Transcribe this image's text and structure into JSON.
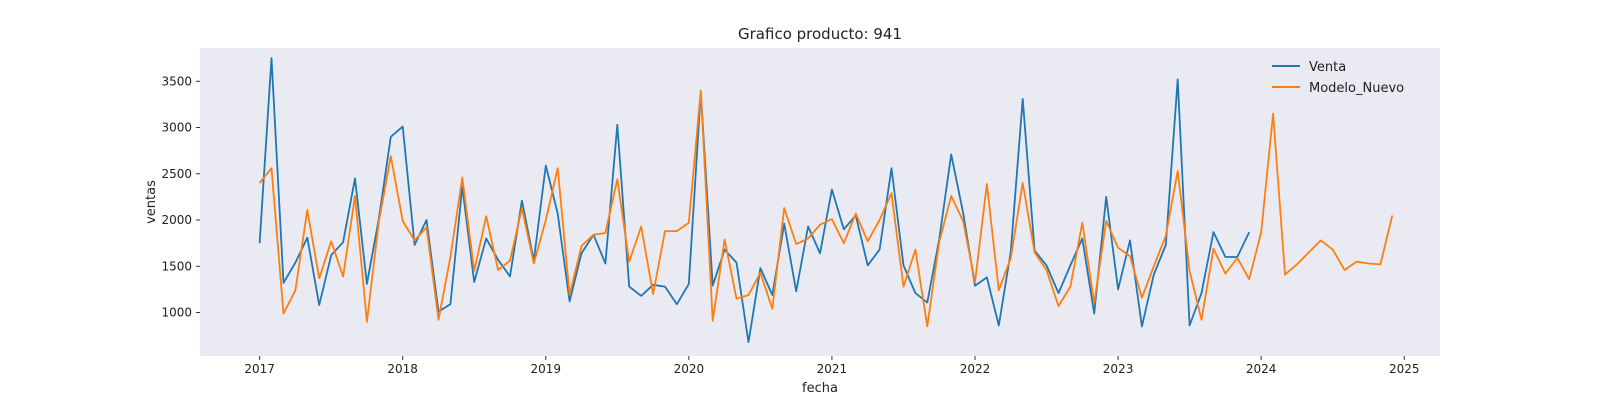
{
  "chart_data": {
    "type": "line",
    "title": "Grafico producto: 941",
    "xlabel": "fecha",
    "ylabel": "ventas",
    "x_ticks": [
      "2017",
      "2018",
      "2019",
      "2020",
      "2021",
      "2022",
      "2023",
      "2024",
      "2025"
    ],
    "y_ticks": [
      1000,
      1500,
      2000,
      2500,
      3000,
      3500
    ],
    "xlim": [
      "2016-08",
      "2025-04"
    ],
    "ylim": [
      530,
      3860
    ],
    "grid": false,
    "legend_position": "top-right",
    "series": [
      {
        "name": "Venta",
        "color": "#1f77b4",
        "points": [
          [
            "2017-01",
            1750
          ],
          [
            "2017-02",
            3750
          ],
          [
            "2017-03",
            1320
          ],
          [
            "2017-04",
            1540
          ],
          [
            "2017-05",
            1810
          ],
          [
            "2017-06",
            1080
          ],
          [
            "2017-07",
            1620
          ],
          [
            "2017-08",
            1760
          ],
          [
            "2017-09",
            2450
          ],
          [
            "2017-10",
            1310
          ],
          [
            "2017-11",
            2010
          ],
          [
            "2017-12",
            2900
          ],
          [
            "2018-01",
            3010
          ],
          [
            "2018-02",
            1730
          ],
          [
            "2018-03",
            2000
          ],
          [
            "2018-04",
            1010
          ],
          [
            "2018-05",
            1090
          ],
          [
            "2018-06",
            2360
          ],
          [
            "2018-07",
            1330
          ],
          [
            "2018-08",
            1800
          ],
          [
            "2018-09",
            1570
          ],
          [
            "2018-10",
            1390
          ],
          [
            "2018-11",
            2210
          ],
          [
            "2018-12",
            1560
          ],
          [
            "2019-01",
            2590
          ],
          [
            "2019-02",
            2070
          ],
          [
            "2019-03",
            1120
          ],
          [
            "2019-04",
            1640
          ],
          [
            "2019-05",
            1840
          ],
          [
            "2019-06",
            1530
          ],
          [
            "2019-07",
            3030
          ],
          [
            "2019-08",
            1280
          ],
          [
            "2019-09",
            1180
          ],
          [
            "2019-10",
            1300
          ],
          [
            "2019-11",
            1280
          ],
          [
            "2019-12",
            1090
          ],
          [
            "2020-01",
            1310
          ],
          [
            "2020-02",
            3380
          ],
          [
            "2020-03",
            1290
          ],
          [
            "2020-04",
            1680
          ],
          [
            "2020-05",
            1540
          ],
          [
            "2020-06",
            680
          ],
          [
            "2020-07",
            1480
          ],
          [
            "2020-08",
            1190
          ],
          [
            "2020-09",
            1960
          ],
          [
            "2020-10",
            1230
          ],
          [
            "2020-11",
            1930
          ],
          [
            "2020-12",
            1640
          ],
          [
            "2021-01",
            2330
          ],
          [
            "2021-02",
            1900
          ],
          [
            "2021-03",
            2050
          ],
          [
            "2021-04",
            1510
          ],
          [
            "2021-05",
            1680
          ],
          [
            "2021-06",
            2560
          ],
          [
            "2021-07",
            1510
          ],
          [
            "2021-08",
            1210
          ],
          [
            "2021-09",
            1110
          ],
          [
            "2021-10",
            1790
          ],
          [
            "2021-11",
            2710
          ],
          [
            "2021-12",
            2080
          ],
          [
            "2022-01",
            1290
          ],
          [
            "2022-02",
            1380
          ],
          [
            "2022-03",
            860
          ],
          [
            "2022-04",
            1660
          ],
          [
            "2022-05",
            3310
          ],
          [
            "2022-06",
            1670
          ],
          [
            "2022-07",
            1510
          ],
          [
            "2022-08",
            1210
          ],
          [
            "2022-09",
            1510
          ],
          [
            "2022-10",
            1800
          ],
          [
            "2022-11",
            990
          ],
          [
            "2022-12",
            2250
          ],
          [
            "2023-01",
            1250
          ],
          [
            "2023-02",
            1780
          ],
          [
            "2023-03",
            850
          ],
          [
            "2023-04",
            1410
          ],
          [
            "2023-05",
            1730
          ],
          [
            "2023-06",
            3520
          ],
          [
            "2023-07",
            860
          ],
          [
            "2023-08",
            1210
          ],
          [
            "2023-09",
            1870
          ],
          [
            "2023-10",
            1600
          ],
          [
            "2023-11",
            1600
          ],
          [
            "2023-12",
            1870
          ]
        ]
      },
      {
        "name": "Modelo_Nuevo",
        "color": "#ff7f0e",
        "points": [
          [
            "2017-01",
            2400
          ],
          [
            "2017-02",
            2560
          ],
          [
            "2017-03",
            990
          ],
          [
            "2017-04",
            1240
          ],
          [
            "2017-05",
            2110
          ],
          [
            "2017-06",
            1370
          ],
          [
            "2017-07",
            1770
          ],
          [
            "2017-08",
            1390
          ],
          [
            "2017-09",
            2260
          ],
          [
            "2017-10",
            900
          ],
          [
            "2017-11",
            1980
          ],
          [
            "2017-12",
            2690
          ],
          [
            "2018-01",
            1990
          ],
          [
            "2018-02",
            1780
          ],
          [
            "2018-03",
            1920
          ],
          [
            "2018-04",
            920
          ],
          [
            "2018-05",
            1600
          ],
          [
            "2018-06",
            2460
          ],
          [
            "2018-07",
            1450
          ],
          [
            "2018-08",
            2040
          ],
          [
            "2018-09",
            1460
          ],
          [
            "2018-10",
            1560
          ],
          [
            "2018-11",
            2130
          ],
          [
            "2018-12",
            1530
          ],
          [
            "2019-01",
            2000
          ],
          [
            "2019-02",
            2560
          ],
          [
            "2019-03",
            1190
          ],
          [
            "2019-04",
            1720
          ],
          [
            "2019-05",
            1840
          ],
          [
            "2019-06",
            1860
          ],
          [
            "2019-07",
            2440
          ],
          [
            "2019-08",
            1550
          ],
          [
            "2019-09",
            1930
          ],
          [
            "2019-10",
            1200
          ],
          [
            "2019-11",
            1880
          ],
          [
            "2019-12",
            1880
          ],
          [
            "2020-01",
            1970
          ],
          [
            "2020-02",
            3400
          ],
          [
            "2020-03",
            910
          ],
          [
            "2020-04",
            1790
          ],
          [
            "2020-05",
            1150
          ],
          [
            "2020-06",
            1190
          ],
          [
            "2020-07",
            1430
          ],
          [
            "2020-08",
            1040
          ],
          [
            "2020-09",
            2130
          ],
          [
            "2020-10",
            1740
          ],
          [
            "2020-11",
            1800
          ],
          [
            "2020-12",
            1950
          ],
          [
            "2021-01",
            2010
          ],
          [
            "2021-02",
            1750
          ],
          [
            "2021-03",
            2070
          ],
          [
            "2021-04",
            1770
          ],
          [
            "2021-05",
            2000
          ],
          [
            "2021-06",
            2290
          ],
          [
            "2021-07",
            1280
          ],
          [
            "2021-08",
            1680
          ],
          [
            "2021-09",
            850
          ],
          [
            "2021-10",
            1760
          ],
          [
            "2021-11",
            2260
          ],
          [
            "2021-12",
            1990
          ],
          [
            "2022-01",
            1330
          ],
          [
            "2022-02",
            2390
          ],
          [
            "2022-03",
            1240
          ],
          [
            "2022-04",
            1590
          ],
          [
            "2022-05",
            2400
          ],
          [
            "2022-06",
            1650
          ],
          [
            "2022-07",
            1460
          ],
          [
            "2022-08",
            1070
          ],
          [
            "2022-09",
            1280
          ],
          [
            "2022-10",
            1970
          ],
          [
            "2022-11",
            1100
          ],
          [
            "2022-12",
            1990
          ],
          [
            "2023-01",
            1700
          ],
          [
            "2023-02",
            1610
          ],
          [
            "2023-03",
            1160
          ],
          [
            "2023-04",
            1500
          ],
          [
            "2023-05",
            1830
          ],
          [
            "2023-06",
            2530
          ],
          [
            "2023-07",
            1450
          ],
          [
            "2023-08",
            920
          ],
          [
            "2023-09",
            1690
          ],
          [
            "2023-10",
            1420
          ],
          [
            "2023-11",
            1590
          ],
          [
            "2023-12",
            1360
          ],
          [
            "2024-01",
            1870
          ],
          [
            "2024-02",
            3150
          ],
          [
            "2024-03",
            1410
          ],
          [
            "2024-04",
            1520
          ],
          [
            "2024-05",
            1650
          ],
          [
            "2024-06",
            1780
          ],
          [
            "2024-07",
            1680
          ],
          [
            "2024-08",
            1460
          ],
          [
            "2024-09",
            1550
          ],
          [
            "2024-10",
            1530
          ],
          [
            "2024-11",
            1520
          ],
          [
            "2024-12",
            2050
          ]
        ]
      }
    ]
  }
}
